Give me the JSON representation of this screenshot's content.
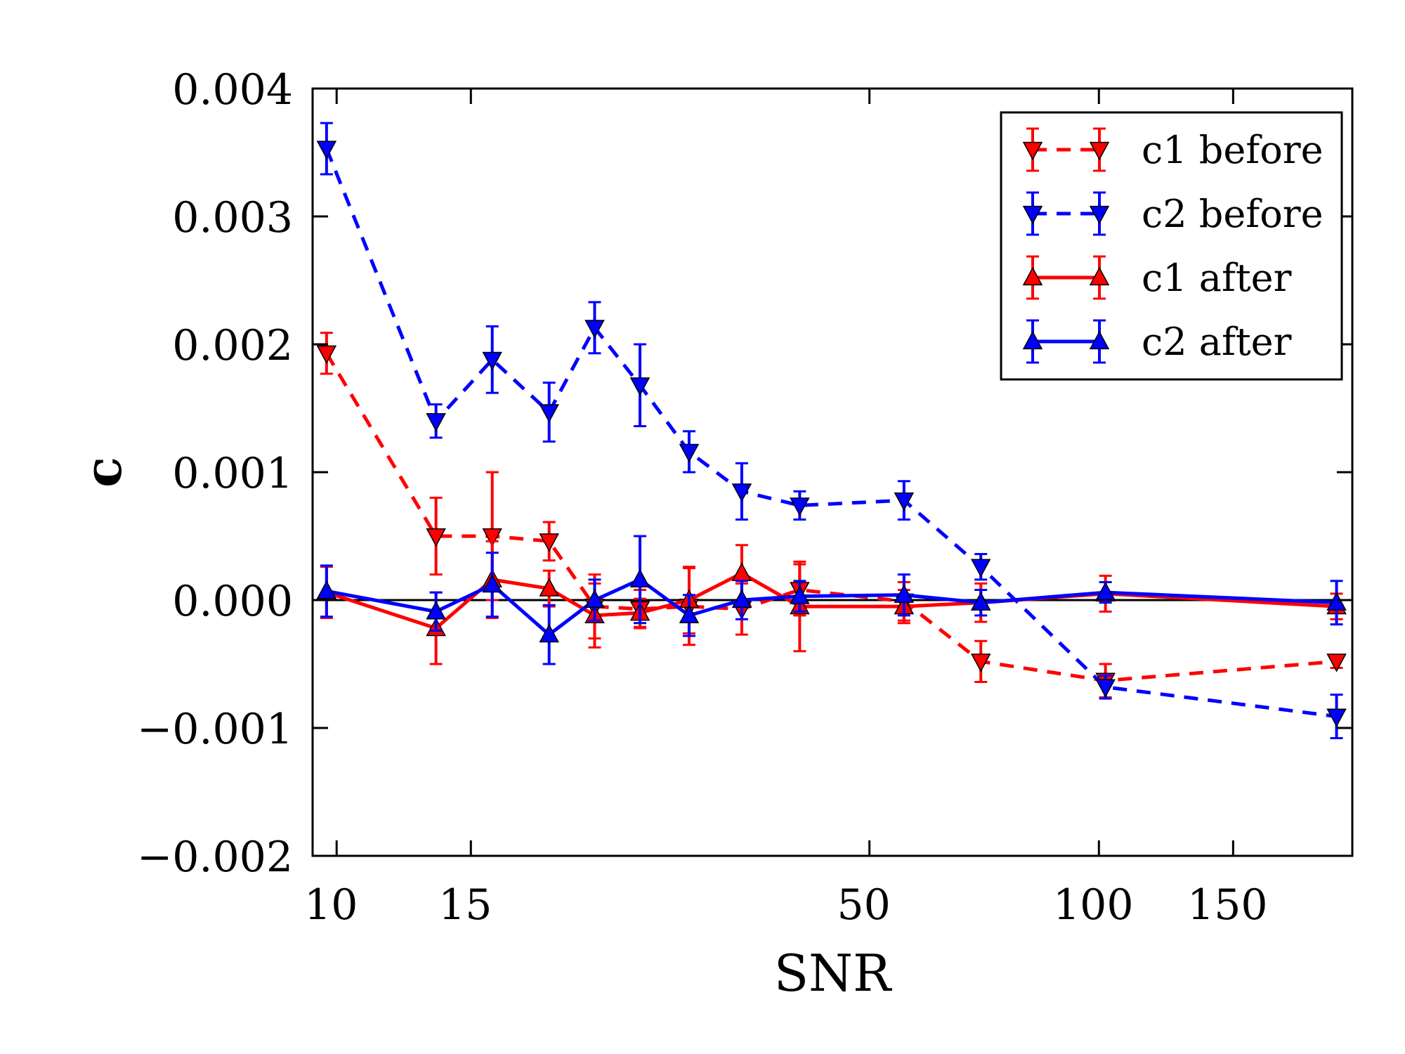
{
  "chart_data": {
    "type": "line",
    "title": "",
    "xlabel": "SNR",
    "ylabel": "c",
    "xscale": "log",
    "xlim": [
      9.3,
      215
    ],
    "ylim": [
      -0.002,
      0.004
    ],
    "xticks": [
      {
        "value": 10,
        "label": "10"
      },
      {
        "value": 15,
        "label": "15"
      },
      {
        "value": 50,
        "label": "50"
      },
      {
        "value": 100,
        "label": "100"
      },
      {
        "value": 150,
        "label": "150"
      }
    ],
    "yticks": [
      {
        "value": -0.002,
        "label": "−0.002"
      },
      {
        "value": -0.001,
        "label": "−0.001"
      },
      {
        "value": 0.0,
        "label": "0.000"
      },
      {
        "value": 0.001,
        "label": "0.001"
      },
      {
        "value": 0.002,
        "label": "0.002"
      },
      {
        "value": 0.003,
        "label": "0.003"
      },
      {
        "value": 0.004,
        "label": "0.004"
      }
    ],
    "reference_line_y": 0.0,
    "legend_position": "upper-right",
    "series": [
      {
        "name": "c1 before",
        "color": "#ff0000",
        "linestyle": "dashed",
        "marker": "triangle-down",
        "x": [
          9.7,
          13.5,
          16.0,
          19.0,
          21.8,
          25.0,
          29.0,
          34.0,
          40.5,
          55.5,
          70.0,
          102.0,
          205.0
        ],
        "y": [
          0.00193,
          0.0005,
          0.0005,
          0.00046,
          -5e-05,
          -7e-05,
          -5e-05,
          -7e-05,
          8e-05,
          -1e-05,
          -0.00048,
          -0.00063,
          -0.00048
        ],
        "err": [
          0.00016,
          0.0003,
          0.0005,
          0.00015,
          0.00025,
          0.00015,
          0.0003,
          0.0002,
          0.0002,
          0.00015,
          0.00016,
          0.00013,
          5e-05
        ]
      },
      {
        "name": "c2 before",
        "color": "#0000ff",
        "linestyle": "dashed",
        "marker": "triangle-down",
        "x": [
          9.7,
          13.5,
          16.0,
          19.0,
          21.8,
          25.0,
          29.0,
          34.0,
          40.5,
          55.5,
          70.0,
          102.0,
          205.0
        ],
        "y": [
          0.00353,
          0.0014,
          0.00188,
          0.00147,
          0.00213,
          0.00168,
          0.00116,
          0.00085,
          0.00074,
          0.00078,
          0.00026,
          -0.00068,
          -0.00091
        ],
        "err": [
          0.0002,
          0.00013,
          0.00026,
          0.00023,
          0.0002,
          0.00032,
          0.00016,
          0.00022,
          0.00011,
          0.00015,
          0.0001,
          9e-05,
          0.00017
        ]
      },
      {
        "name": "c1 after",
        "color": "#ff0000",
        "linestyle": "solid",
        "marker": "triangle-up",
        "x": [
          9.7,
          13.5,
          16.0,
          19.0,
          21.8,
          25.0,
          29.0,
          34.0,
          40.5,
          55.5,
          70.0,
          102.0,
          205.0
        ],
        "y": [
          6e-05,
          -0.00022,
          0.00016,
          9e-05,
          -0.00012,
          -0.0001,
          0.0,
          0.00021,
          -5e-05,
          -5e-05,
          -2e-05,
          5e-05,
          -5e-05
        ],
        "err": [
          0.0002,
          0.00028,
          0.0003,
          0.00014,
          0.00025,
          0.00011,
          0.00026,
          0.00022,
          0.00035,
          0.00013,
          0.00015,
          0.00014,
          0.0001
        ]
      },
      {
        "name": "c2 after",
        "color": "#0000ff",
        "linestyle": "solid",
        "marker": "triangle-up",
        "x": [
          9.7,
          13.5,
          16.0,
          19.0,
          21.8,
          25.0,
          29.0,
          34.0,
          40.5,
          55.5,
          70.0,
          102.0,
          205.0
        ],
        "y": [
          7e-05,
          -9e-05,
          0.00012,
          -0.00027,
          0.0,
          0.00016,
          -0.00012,
          0.0,
          3e-05,
          4e-05,
          -2e-05,
          6e-05,
          -2e-05
        ],
        "err": [
          0.0002,
          0.00015,
          0.00025,
          0.00023,
          0.00016,
          0.00034,
          0.00016,
          0.00015,
          0.00012,
          0.00016,
          0.0001,
          8e-05,
          0.00017
        ]
      }
    ]
  }
}
